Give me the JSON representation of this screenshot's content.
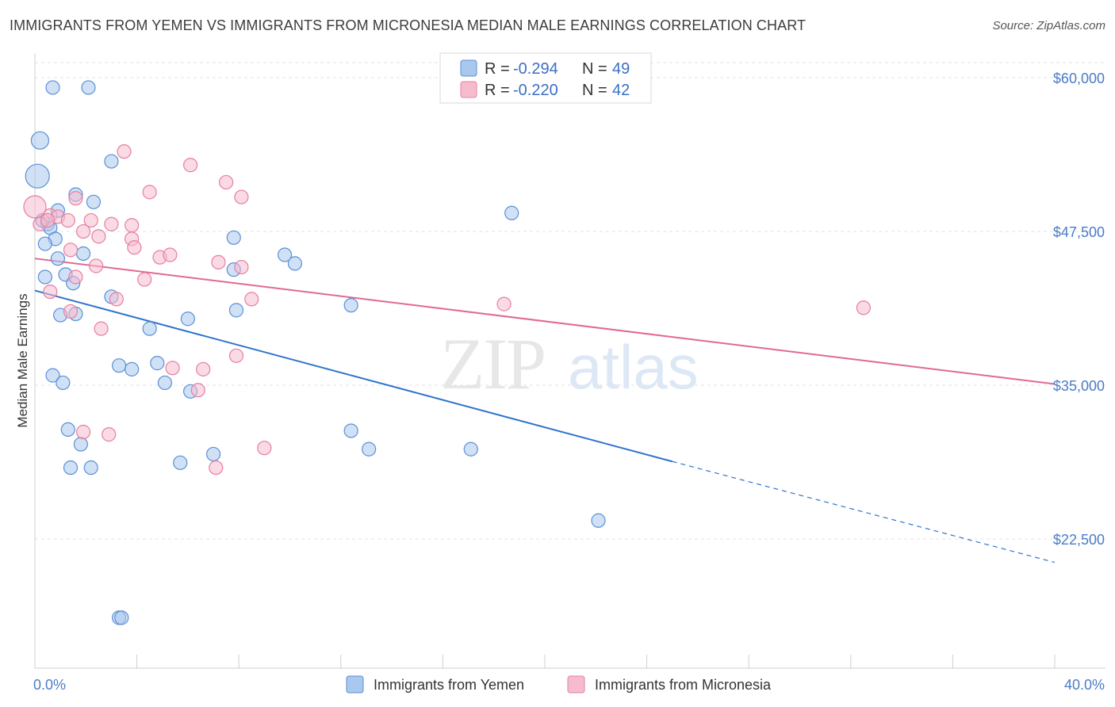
{
  "header": {
    "title": "IMMIGRANTS FROM YEMEN VS IMMIGRANTS FROM MICRONESIA MEDIAN MALE EARNINGS CORRELATION CHART",
    "source": "Source: ZipAtlas.com"
  },
  "watermark": {
    "zip": "ZIP",
    "atlas": "atlas"
  },
  "legend": {
    "r_label": "R =",
    "n_label": "N =",
    "entries": [
      {
        "r": "-0.294",
        "n": "49"
      },
      {
        "r": "-0.220",
        "n": "42"
      }
    ]
  },
  "colors": {
    "yemen_fill": "#a9c8ee",
    "yemen_stroke": "#5b8fd6",
    "yemen_line": "#2f74cc",
    "micronesia_fill": "#f6bccd",
    "micronesia_stroke": "#e67fa0",
    "micronesia_line": "#e06a92",
    "tick_label": "#4a7cc9"
  },
  "chart_data": {
    "type": "scatter",
    "xlabel": "",
    "ylabel": "Median Male Earnings",
    "xlim": [
      0,
      40
    ],
    "ylim": [
      12000,
      62000
    ],
    "x_tick_labels": [
      {
        "value": 0,
        "label": "0.0%"
      },
      {
        "value": 40,
        "label": "40.0%"
      }
    ],
    "y_ticks": [
      {
        "value": 22500,
        "label": "$22,500"
      },
      {
        "value": 35000,
        "label": "$35,000"
      },
      {
        "value": 47500,
        "label": "$47,500"
      },
      {
        "value": 60000,
        "label": "$60,000"
      }
    ],
    "grid": true,
    "legend_placement": "top-center",
    "series": [
      {
        "name": "Immigrants from Yemen",
        "points": [
          [
            0.7,
            59200
          ],
          [
            2.1,
            59200
          ],
          [
            0.2,
            54900
          ],
          [
            0.1,
            52000
          ],
          [
            3.0,
            53200
          ],
          [
            1.6,
            50500
          ],
          [
            2.3,
            49900
          ],
          [
            0.9,
            49200
          ],
          [
            0.5,
            48100
          ],
          [
            0.6,
            47800
          ],
          [
            0.8,
            46900
          ],
          [
            0.4,
            46500
          ],
          [
            7.8,
            47000
          ],
          [
            1.9,
            45700
          ],
          [
            0.9,
            45300
          ],
          [
            9.8,
            45600
          ],
          [
            10.2,
            44900
          ],
          [
            7.8,
            44400
          ],
          [
            0.4,
            43800
          ],
          [
            1.2,
            44000
          ],
          [
            1.5,
            43300
          ],
          [
            3.0,
            42200
          ],
          [
            12.4,
            41500
          ],
          [
            1.0,
            40700
          ],
          [
            1.6,
            40800
          ],
          [
            7.9,
            41100
          ],
          [
            6.0,
            40400
          ],
          [
            4.5,
            39600
          ],
          [
            18.7,
            49000
          ],
          [
            3.3,
            36600
          ],
          [
            3.8,
            36300
          ],
          [
            4.8,
            36800
          ],
          [
            0.7,
            35800
          ],
          [
            1.1,
            35200
          ],
          [
            5.1,
            35200
          ],
          [
            6.1,
            34500
          ],
          [
            1.3,
            31400
          ],
          [
            12.4,
            31300
          ],
          [
            1.8,
            30200
          ],
          [
            13.1,
            29800
          ],
          [
            17.1,
            29800
          ],
          [
            7.0,
            29400
          ],
          [
            5.7,
            28700
          ],
          [
            1.4,
            28300
          ],
          [
            2.2,
            28300
          ],
          [
            22.1,
            24000
          ],
          [
            3.3,
            16100
          ],
          [
            3.4,
            16100
          ],
          [
            0.3,
            48400
          ]
        ],
        "trend": {
          "x0": 0,
          "y0": 42700,
          "x1": 25,
          "y1": 28800,
          "dash_to_x": 40,
          "dash_to_y": 20600
        }
      },
      {
        "name": "Immigrants from Micronesia",
        "points": [
          [
            0.0,
            49500
          ],
          [
            3.5,
            54000
          ],
          [
            6.1,
            52900
          ],
          [
            7.5,
            51500
          ],
          [
            4.5,
            50700
          ],
          [
            8.1,
            50300
          ],
          [
            1.6,
            50200
          ],
          [
            0.6,
            48800
          ],
          [
            0.9,
            48700
          ],
          [
            1.3,
            48400
          ],
          [
            2.2,
            48400
          ],
          [
            3.0,
            48100
          ],
          [
            3.8,
            48000
          ],
          [
            1.9,
            47500
          ],
          [
            2.5,
            47100
          ],
          [
            3.8,
            46900
          ],
          [
            3.9,
            46200
          ],
          [
            1.4,
            46000
          ],
          [
            4.9,
            45400
          ],
          [
            5.3,
            45600
          ],
          [
            7.2,
            45000
          ],
          [
            2.4,
            44700
          ],
          [
            8.1,
            44600
          ],
          [
            1.6,
            43800
          ],
          [
            4.3,
            43600
          ],
          [
            0.6,
            42600
          ],
          [
            3.2,
            42000
          ],
          [
            8.5,
            42000
          ],
          [
            18.4,
            41600
          ],
          [
            32.5,
            41300
          ],
          [
            1.4,
            41000
          ],
          [
            2.6,
            39600
          ],
          [
            5.4,
            36400
          ],
          [
            6.6,
            36300
          ],
          [
            7.9,
            37400
          ],
          [
            6.4,
            34600
          ],
          [
            1.9,
            31200
          ],
          [
            2.9,
            31000
          ],
          [
            9.0,
            29900
          ],
          [
            7.1,
            28300
          ],
          [
            0.2,
            48100
          ],
          [
            0.5,
            48400
          ]
        ],
        "trend": {
          "x0": 0,
          "y0": 45300,
          "x1": 40,
          "y1": 35100
        }
      }
    ]
  }
}
